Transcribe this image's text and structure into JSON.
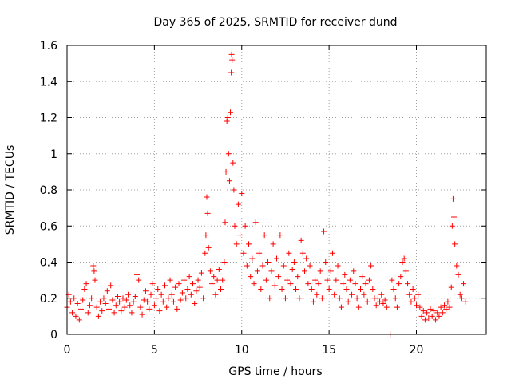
{
  "chart_data": {
    "type": "scatter",
    "title": "Day 365 of 2025, SRMTID for receiver dund",
    "xlabel": "GPS time / hours",
    "ylabel": "SRMTID / TECUs",
    "xlim": [
      0,
      24
    ],
    "ylim": [
      0,
      1.6
    ],
    "xticks": [
      0,
      5,
      10,
      15,
      20
    ],
    "xtick_labels": [
      "0",
      "5",
      "10",
      "15",
      "20"
    ],
    "yticks": [
      0,
      0.2,
      0.4,
      0.6,
      0.8,
      1.0,
      1.2,
      1.4,
      1.6
    ],
    "ytick_labels": [
      "0",
      "0.2",
      "0.4",
      "0.6",
      "0.8",
      "1",
      "1.2",
      "1.4",
      "1.6"
    ],
    "grid": true,
    "marker": "+",
    "color": "#ff0000",
    "series": [
      {
        "name": "SRMTID",
        "points": [
          [
            0.0,
            0.15
          ],
          [
            0.1,
            0.22
          ],
          [
            0.2,
            0.18
          ],
          [
            0.3,
            0.12
          ],
          [
            0.4,
            0.2
          ],
          [
            0.5,
            0.1
          ],
          [
            0.6,
            0.17
          ],
          [
            0.7,
            0.08
          ],
          [
            0.8,
            0.14
          ],
          [
            0.9,
            0.19
          ],
          [
            1.0,
            0.25
          ],
          [
            1.1,
            0.28
          ],
          [
            1.2,
            0.12
          ],
          [
            1.3,
            0.16
          ],
          [
            1.4,
            0.2
          ],
          [
            1.5,
            0.38
          ],
          [
            1.55,
            0.35
          ],
          [
            1.6,
            0.3
          ],
          [
            1.7,
            0.15
          ],
          [
            1.8,
            0.1
          ],
          [
            1.9,
            0.18
          ],
          [
            2.0,
            0.13
          ],
          [
            2.1,
            0.2
          ],
          [
            2.2,
            0.17
          ],
          [
            2.3,
            0.24
          ],
          [
            2.4,
            0.14
          ],
          [
            2.5,
            0.27
          ],
          [
            2.6,
            0.19
          ],
          [
            2.7,
            0.12
          ],
          [
            2.8,
            0.16
          ],
          [
            2.9,
            0.21
          ],
          [
            3.0,
            0.18
          ],
          [
            3.1,
            0.13
          ],
          [
            3.2,
            0.2
          ],
          [
            3.3,
            0.15
          ],
          [
            3.4,
            0.19
          ],
          [
            3.5,
            0.22
          ],
          [
            3.6,
            0.16
          ],
          [
            3.7,
            0.12
          ],
          [
            3.8,
            0.18
          ],
          [
            3.9,
            0.21
          ],
          [
            4.0,
            0.33
          ],
          [
            4.1,
            0.3
          ],
          [
            4.2,
            0.15
          ],
          [
            4.3,
            0.11
          ],
          [
            4.4,
            0.19
          ],
          [
            4.5,
            0.24
          ],
          [
            4.6,
            0.18
          ],
          [
            4.7,
            0.14
          ],
          [
            4.8,
            0.22
          ],
          [
            4.9,
            0.28
          ],
          [
            5.0,
            0.16
          ],
          [
            5.1,
            0.2
          ],
          [
            5.2,
            0.25
          ],
          [
            5.3,
            0.13
          ],
          [
            5.4,
            0.22
          ],
          [
            5.5,
            0.18
          ],
          [
            5.6,
            0.27
          ],
          [
            5.7,
            0.15
          ],
          [
            5.8,
            0.2
          ],
          [
            5.9,
            0.3
          ],
          [
            6.0,
            0.22
          ],
          [
            6.1,
            0.18
          ],
          [
            6.2,
            0.26
          ],
          [
            6.3,
            0.14
          ],
          [
            6.4,
            0.28
          ],
          [
            6.5,
            0.19
          ],
          [
            6.6,
            0.23
          ],
          [
            6.7,
            0.3
          ],
          [
            6.8,
            0.2
          ],
          [
            6.9,
            0.25
          ],
          [
            7.0,
            0.32
          ],
          [
            7.1,
            0.22
          ],
          [
            7.2,
            0.28
          ],
          [
            7.3,
            0.17
          ],
          [
            7.4,
            0.24
          ],
          [
            7.5,
            0.3
          ],
          [
            7.6,
            0.26
          ],
          [
            7.7,
            0.34
          ],
          [
            7.8,
            0.2
          ],
          [
            7.9,
            0.45
          ],
          [
            7.95,
            0.55
          ],
          [
            8.0,
            0.76
          ],
          [
            8.05,
            0.67
          ],
          [
            8.1,
            0.48
          ],
          [
            8.2,
            0.35
          ],
          [
            8.3,
            0.28
          ],
          [
            8.4,
            0.32
          ],
          [
            8.5,
            0.22
          ],
          [
            8.6,
            0.3
          ],
          [
            8.7,
            0.36
          ],
          [
            8.8,
            0.25
          ],
          [
            8.9,
            0.3
          ],
          [
            9.0,
            0.4
          ],
          [
            9.05,
            0.62
          ],
          [
            9.1,
            0.9
          ],
          [
            9.15,
            1.18
          ],
          [
            9.2,
            1.2
          ],
          [
            9.25,
            1.0
          ],
          [
            9.3,
            0.85
          ],
          [
            9.35,
            1.23
          ],
          [
            9.4,
            1.45
          ],
          [
            9.42,
            1.55
          ],
          [
            9.45,
            1.52
          ],
          [
            9.5,
            0.95
          ],
          [
            9.55,
            0.8
          ],
          [
            9.6,
            0.6
          ],
          [
            9.7,
            0.5
          ],
          [
            9.8,
            0.72
          ],
          [
            9.9,
            0.55
          ],
          [
            10.0,
            0.78
          ],
          [
            10.1,
            0.45
          ],
          [
            10.2,
            0.6
          ],
          [
            10.3,
            0.38
          ],
          [
            10.4,
            0.5
          ],
          [
            10.5,
            0.32
          ],
          [
            10.6,
            0.42
          ],
          [
            10.7,
            0.28
          ],
          [
            10.8,
            0.62
          ],
          [
            10.9,
            0.35
          ],
          [
            11.0,
            0.45
          ],
          [
            11.1,
            0.25
          ],
          [
            11.2,
            0.38
          ],
          [
            11.3,
            0.55
          ],
          [
            11.4,
            0.3
          ],
          [
            11.5,
            0.4
          ],
          [
            11.6,
            0.2
          ],
          [
            11.7,
            0.35
          ],
          [
            11.8,
            0.5
          ],
          [
            11.9,
            0.27
          ],
          [
            12.0,
            0.42
          ],
          [
            12.1,
            0.32
          ],
          [
            12.2,
            0.55
          ],
          [
            12.3,
            0.25
          ],
          [
            12.4,
            0.38
          ],
          [
            12.5,
            0.2
          ],
          [
            12.6,
            0.3
          ],
          [
            12.7,
            0.45
          ],
          [
            12.8,
            0.28
          ],
          [
            12.9,
            0.36
          ],
          [
            13.0,
            0.4
          ],
          [
            13.1,
            0.25
          ],
          [
            13.2,
            0.32
          ],
          [
            13.3,
            0.2
          ],
          [
            13.4,
            0.52
          ],
          [
            13.5,
            0.45
          ],
          [
            13.6,
            0.35
          ],
          [
            13.7,
            0.42
          ],
          [
            13.8,
            0.28
          ],
          [
            13.9,
            0.38
          ],
          [
            14.0,
            0.25
          ],
          [
            14.1,
            0.18
          ],
          [
            14.2,
            0.3
          ],
          [
            14.3,
            0.22
          ],
          [
            14.4,
            0.28
          ],
          [
            14.5,
            0.35
          ],
          [
            14.6,
            0.2
          ],
          [
            14.7,
            0.57
          ],
          [
            14.8,
            0.4
          ],
          [
            14.9,
            0.3
          ],
          [
            15.0,
            0.25
          ],
          [
            15.1,
            0.35
          ],
          [
            15.2,
            0.45
          ],
          [
            15.3,
            0.22
          ],
          [
            15.4,
            0.3
          ],
          [
            15.5,
            0.38
          ],
          [
            15.6,
            0.2
          ],
          [
            15.7,
            0.15
          ],
          [
            15.8,
            0.28
          ],
          [
            15.9,
            0.33
          ],
          [
            16.0,
            0.25
          ],
          [
            16.1,
            0.18
          ],
          [
            16.2,
            0.3
          ],
          [
            16.3,
            0.22
          ],
          [
            16.4,
            0.35
          ],
          [
            16.5,
            0.28
          ],
          [
            16.6,
            0.2
          ],
          [
            16.7,
            0.15
          ],
          [
            16.8,
            0.25
          ],
          [
            16.9,
            0.32
          ],
          [
            17.0,
            0.22
          ],
          [
            17.1,
            0.28
          ],
          [
            17.2,
            0.18
          ],
          [
            17.3,
            0.3
          ],
          [
            17.4,
            0.38
          ],
          [
            17.5,
            0.25
          ],
          [
            17.6,
            0.2
          ],
          [
            17.7,
            0.16
          ],
          [
            17.8,
            0.2
          ],
          [
            17.9,
            0.18
          ],
          [
            18.0,
            0.22
          ],
          [
            18.1,
            0.17
          ],
          [
            18.2,
            0.19
          ],
          [
            18.3,
            0.15
          ],
          [
            18.5,
            0.0
          ],
          [
            18.6,
            0.3
          ],
          [
            18.7,
            0.25
          ],
          [
            18.8,
            0.2
          ],
          [
            18.9,
            0.15
          ],
          [
            19.0,
            0.28
          ],
          [
            19.1,
            0.32
          ],
          [
            19.2,
            0.4
          ],
          [
            19.3,
            0.42
          ],
          [
            19.4,
            0.35
          ],
          [
            19.5,
            0.28
          ],
          [
            19.6,
            0.22
          ],
          [
            19.7,
            0.18
          ],
          [
            19.8,
            0.25
          ],
          [
            19.9,
            0.2
          ],
          [
            20.0,
            0.16
          ],
          [
            20.1,
            0.22
          ],
          [
            20.2,
            0.15
          ],
          [
            20.3,
            0.1
          ],
          [
            20.4,
            0.13
          ],
          [
            20.5,
            0.08
          ],
          [
            20.6,
            0.12
          ],
          [
            20.7,
            0.09
          ],
          [
            20.8,
            0.14
          ],
          [
            20.9,
            0.1
          ],
          [
            21.0,
            0.13
          ],
          [
            21.1,
            0.08
          ],
          [
            21.2,
            0.12
          ],
          [
            21.3,
            0.1
          ],
          [
            21.4,
            0.15
          ],
          [
            21.5,
            0.12
          ],
          [
            21.6,
            0.16
          ],
          [
            21.7,
            0.14
          ],
          [
            21.8,
            0.18
          ],
          [
            21.9,
            0.15
          ],
          [
            22.0,
            0.26
          ],
          [
            22.05,
            0.6
          ],
          [
            22.1,
            0.75
          ],
          [
            22.15,
            0.65
          ],
          [
            22.2,
            0.5
          ],
          [
            22.3,
            0.38
          ],
          [
            22.4,
            0.33
          ],
          [
            22.5,
            0.22
          ],
          [
            22.6,
            0.2
          ],
          [
            22.7,
            0.28
          ],
          [
            22.8,
            0.18
          ]
        ]
      }
    ]
  }
}
